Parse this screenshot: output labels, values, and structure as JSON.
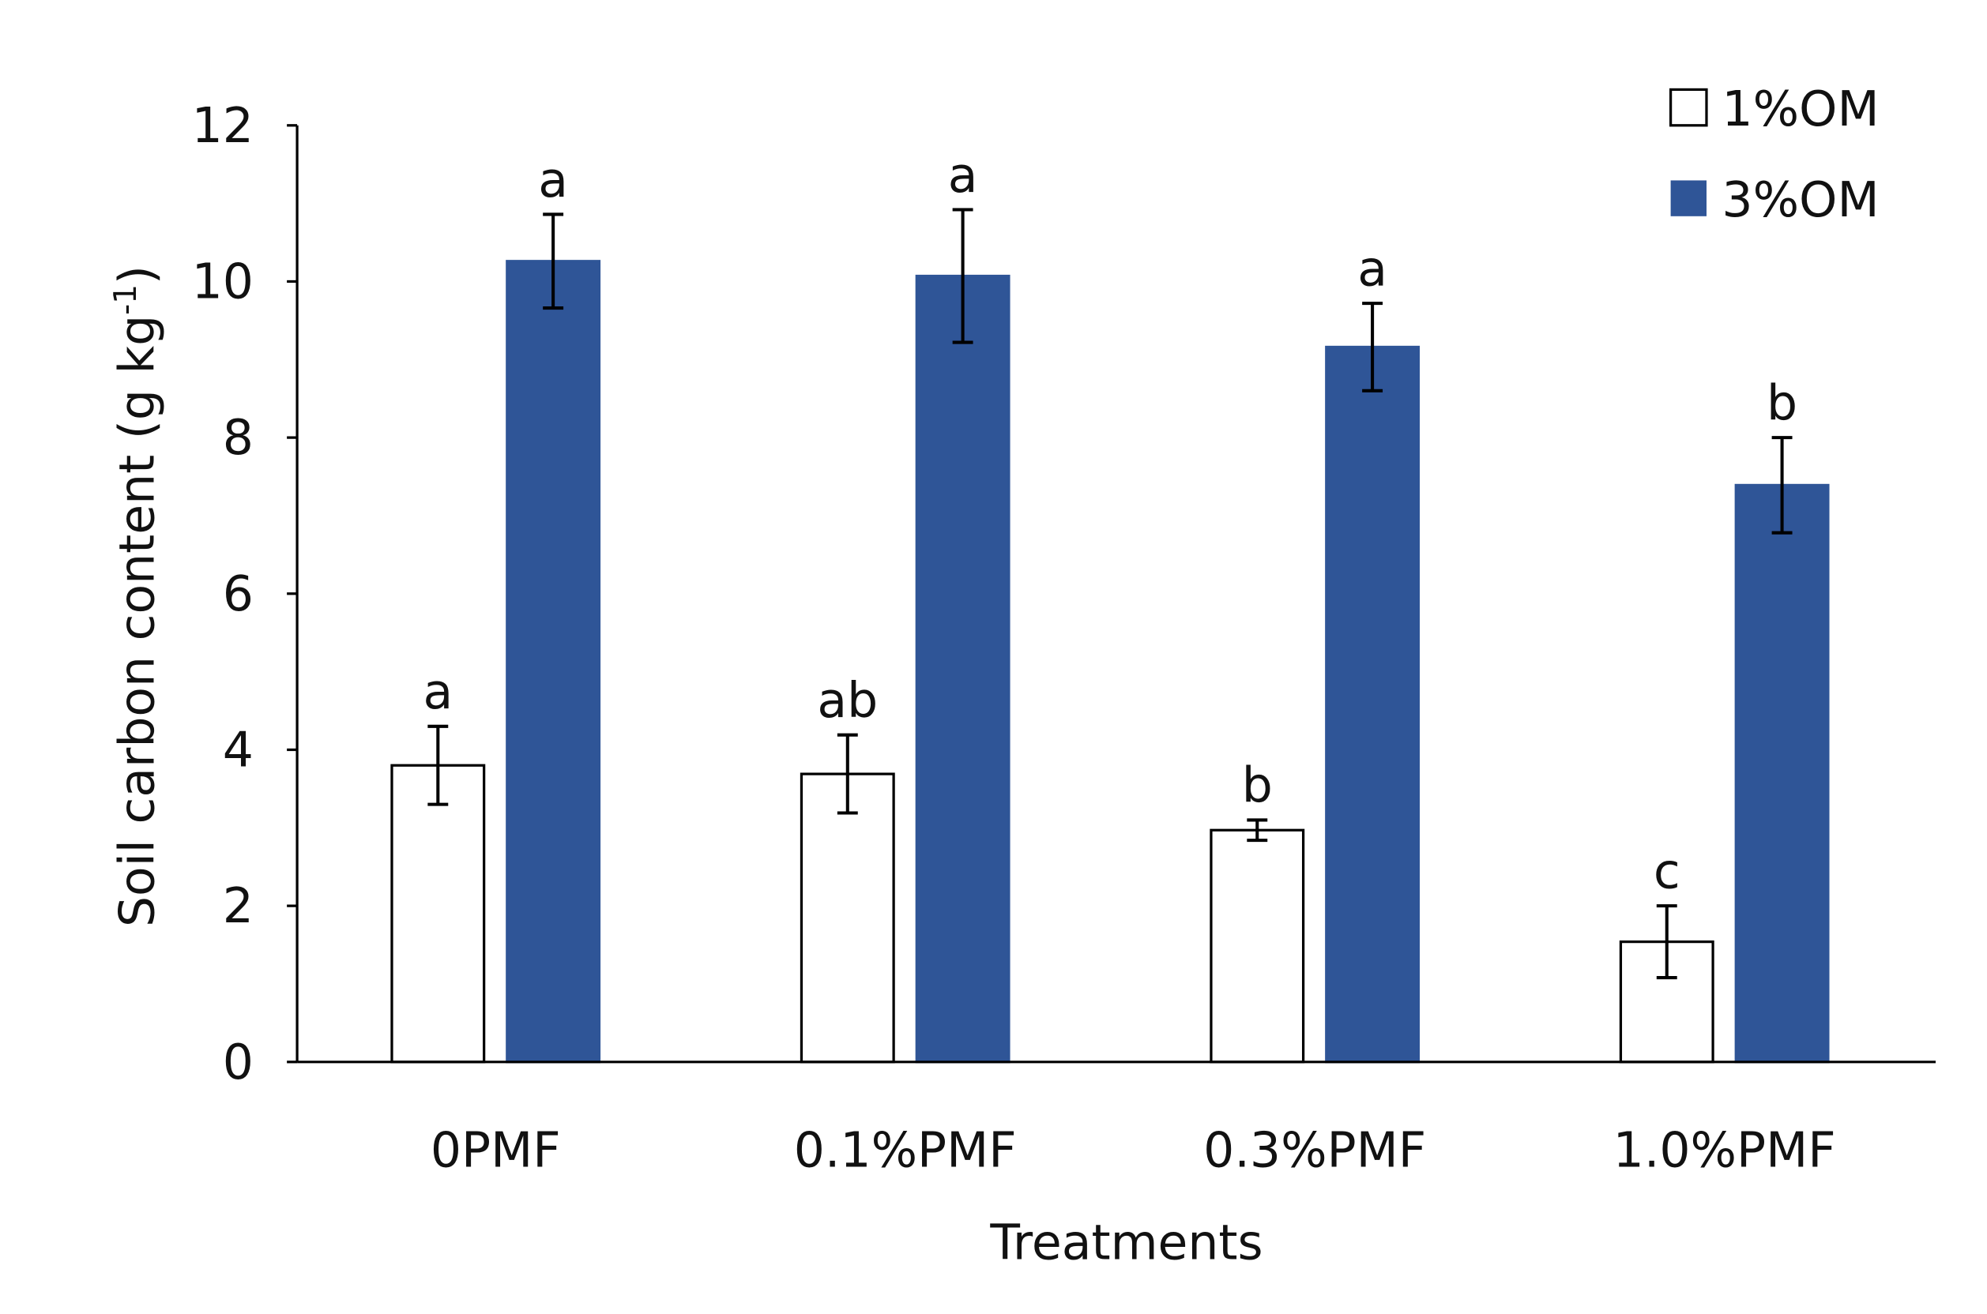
{
  "chart_data": {
    "type": "bar",
    "title": "",
    "xlabel": "Treatments",
    "ylabel": "Soil carbon content (g kg",
    "ylabel_sup": "-1",
    "ylabel_end": ")",
    "ylim": [
      0,
      12
    ],
    "yticks": [
      "0",
      "2",
      "4",
      "6",
      "8",
      "10",
      "12"
    ],
    "categories": [
      "0PMF",
      "0.1%PMF",
      "0.3%PMF",
      "1.0%PMF"
    ],
    "legend_position": "top-right",
    "series": [
      {
        "name": "1%OM",
        "color": "#ffffff",
        "stroke": "#000000",
        "values": [
          3.8,
          3.69,
          2.97,
          1.54
        ],
        "errors": [
          0.5,
          0.5,
          0.13,
          0.46
        ],
        "letters": [
          "a",
          "ab",
          "b",
          "c"
        ]
      },
      {
        "name": "3%OM",
        "color": "#2f5597",
        "stroke": "#2f5597",
        "values": [
          10.26,
          10.07,
          9.16,
          7.39
        ],
        "errors": [
          0.6,
          0.85,
          0.56,
          0.61
        ],
        "letters": [
          "a",
          "a",
          "a",
          "b"
        ]
      }
    ]
  }
}
